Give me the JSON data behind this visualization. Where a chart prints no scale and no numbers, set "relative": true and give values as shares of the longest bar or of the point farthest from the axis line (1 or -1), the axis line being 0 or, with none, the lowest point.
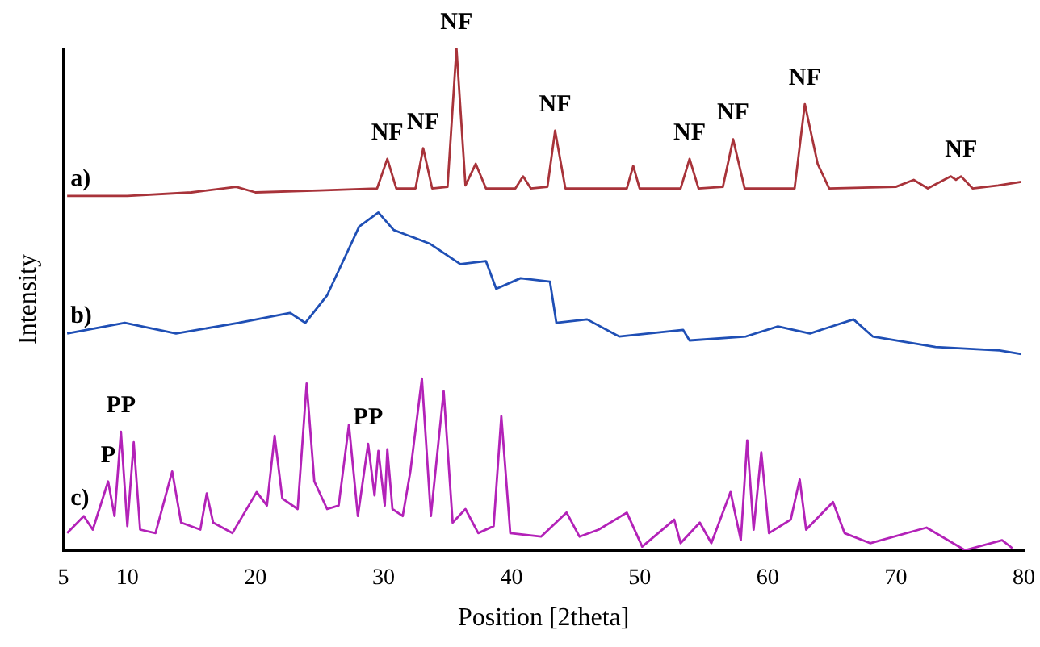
{
  "chart_data": {
    "type": "line",
    "relative": true,
    "xlabel": "Position [2theta]",
    "ylabel": "Intensity",
    "xlim": [
      5,
      80
    ],
    "xticks": [
      5,
      10,
      20,
      30,
      40,
      50,
      60,
      70,
      80
    ],
    "grid": false,
    "legend": false,
    "marker": "none",
    "line_style": "solid",
    "series": [
      {
        "name": "a)",
        "color": "#a8333a",
        "x": [
          5.3,
          10,
          15,
          18.5,
          20,
          25,
          29.5,
          30.3,
          31,
          32.5,
          33.1,
          33.8,
          35,
          35.7,
          36.4,
          37.2,
          38,
          40.3,
          40.9,
          41.5,
          42.8,
          43.4,
          44.2,
          49,
          49.5,
          50,
          53.2,
          53.9,
          54.6,
          56.5,
          57.3,
          58.2,
          62.1,
          62.9,
          63.9,
          64.8,
          70,
          71.4,
          72.5,
          74.3,
          74.7,
          75.1,
          76,
          78,
          79.8
        ],
        "values": [
          0.706,
          0.706,
          0.713,
          0.724,
          0.713,
          0.717,
          0.721,
          0.78,
          0.721,
          0.721,
          0.801,
          0.721,
          0.724,
          1,
          0.727,
          0.77,
          0.721,
          0.721,
          0.745,
          0.721,
          0.724,
          0.836,
          0.721,
          0.721,
          0.766,
          0.721,
          0.721,
          0.78,
          0.721,
          0.724,
          0.819,
          0.721,
          0.721,
          0.889,
          0.77,
          0.721,
          0.724,
          0.738,
          0.721,
          0.745,
          0.738,
          0.745,
          0.721,
          0.727,
          0.734
        ]
      },
      {
        "name": "b)",
        "color": "#1f4fb5",
        "x": [
          5.3,
          9.8,
          13.8,
          18.7,
          22.7,
          23.9,
          25.6,
          27.1,
          28.1,
          29.6,
          30.8,
          33.6,
          36,
          38,
          38.8,
          40.7,
          43,
          43.5,
          45.9,
          48.4,
          53.4,
          53.9,
          58.3,
          60.8,
          63.3,
          66.7,
          68.2,
          73.1,
          78.1,
          79.8
        ],
        "values": [
          0.432,
          0.453,
          0.432,
          0.453,
          0.473,
          0.453,
          0.508,
          0.59,
          0.645,
          0.673,
          0.638,
          0.611,
          0.57,
          0.576,
          0.521,
          0.542,
          0.535,
          0.453,
          0.46,
          0.426,
          0.439,
          0.418,
          0.426,
          0.446,
          0.432,
          0.46,
          0.426,
          0.405,
          0.398,
          0.391
        ]
      },
      {
        "name": "c)",
        "color": "#b322b8",
        "x": [
          5.3,
          6.6,
          7.3,
          8.5,
          9,
          9.5,
          10,
          10.5,
          11,
          12.2,
          13.5,
          14.2,
          15.7,
          16.2,
          16.7,
          18.2,
          20.1,
          20.9,
          21.5,
          22.1,
          23.3,
          24,
          24.6,
          25.6,
          26.5,
          27.3,
          28,
          28.8,
          29.3,
          29.6,
          30.1,
          30.3,
          30.7,
          31.5,
          32.1,
          33,
          33.7,
          34.7,
          35.4,
          36.4,
          37.4,
          38.6,
          39.2,
          39.9,
          42.3,
          44.3,
          45.3,
          46.8,
          49,
          50.2,
          52.7,
          53.2,
          54.7,
          55.6,
          57.1,
          57.9,
          58.4,
          58.9,
          59.5,
          60.1,
          61.8,
          62.5,
          63,
          65.1,
          66,
          68,
          72.4,
          75.4,
          78.3,
          79.1
        ],
        "values": [
          0.034,
          0.068,
          0.041,
          0.137,
          0.068,
          0.236,
          0.048,
          0.215,
          0.041,
          0.034,
          0.157,
          0.055,
          0.041,
          0.113,
          0.055,
          0.034,
          0.116,
          0.089,
          0.228,
          0.103,
          0.082,
          0.332,
          0.137,
          0.082,
          0.089,
          0.25,
          0.068,
          0.212,
          0.109,
          0.198,
          0.089,
          0.201,
          0.082,
          0.068,
          0.157,
          0.342,
          0.068,
          0.317,
          0.055,
          0.082,
          0.034,
          0.048,
          0.267,
          0.034,
          0.027,
          0.075,
          0.027,
          0.041,
          0.075,
          0.007,
          0.061,
          0.014,
          0.055,
          0.014,
          0.116,
          0.02,
          0.219,
          0.041,
          0.195,
          0.034,
          0.061,
          0.141,
          0.041,
          0.096,
          0.034,
          0.014,
          0.045,
          0,
          0.02,
          0.004
        ]
      }
    ],
    "annotations": [
      {
        "text": "NF",
        "x": 30.3,
        "y": 0.78
      },
      {
        "text": "NF",
        "x": 33.1,
        "y": 0.801
      },
      {
        "text": "NF",
        "x": 35.7,
        "y": 1
      },
      {
        "text": "NF",
        "x": 43.4,
        "y": 0.836
      },
      {
        "text": "NF",
        "x": 53.9,
        "y": 0.78
      },
      {
        "text": "NF",
        "x": 57.3,
        "y": 0.819
      },
      {
        "text": "NF",
        "x": 62.9,
        "y": 0.889
      },
      {
        "text": "NF",
        "x": 75.1,
        "y": 0.745
      },
      {
        "text": "P",
        "x": 8.5,
        "y": 0.137
      },
      {
        "text": "PP",
        "x": 9.5,
        "y": 0.236
      },
      {
        "text": "PP",
        "x": 28.8,
        "y": 0.212
      }
    ]
  }
}
